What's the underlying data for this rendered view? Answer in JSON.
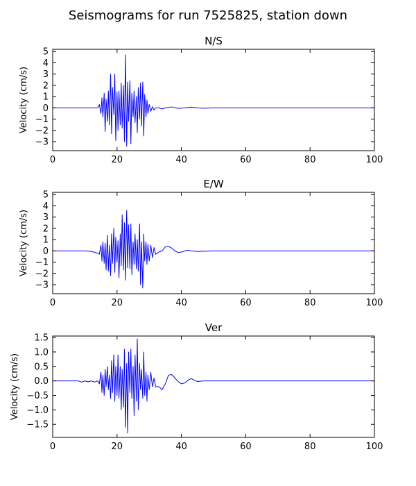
{
  "figure": {
    "title": "Seismograms for run 7525825, station down"
  },
  "chart_data": [
    {
      "type": "line",
      "title": "N/S",
      "xlabel": "",
      "ylabel": "Velocity (cm/s)",
      "xlim": [
        0,
        100
      ],
      "ylim": [
        -3.8,
        5.2
      ],
      "xticks": [
        0,
        20,
        40,
        60,
        80,
        100
      ],
      "yticks": [
        -3,
        -2,
        -1,
        0,
        1,
        2,
        3,
        4,
        5
      ],
      "grid": false,
      "series": [
        {
          "color": "#0000ff",
          "x": [
            0,
            10,
            14,
            14.5,
            15,
            15.3,
            15.6,
            16,
            16.3,
            16.6,
            17,
            17.3,
            17.6,
            18,
            18.3,
            18.6,
            19,
            19.3,
            19.6,
            20,
            20.3,
            20.6,
            21,
            21.3,
            21.6,
            22,
            22.3,
            22.6,
            23,
            23.3,
            23.6,
            24,
            24.3,
            24.6,
            25,
            25.3,
            25.6,
            26,
            26.3,
            26.6,
            27,
            27.3,
            27.6,
            28,
            28.3,
            28.6,
            29,
            29.3,
            29.6,
            30,
            30.5,
            31,
            31.5,
            32,
            33,
            34,
            35,
            37,
            39,
            41,
            43,
            45,
            47,
            50,
            60,
            100
          ],
          "y": [
            0,
            0,
            0,
            0.3,
            -0.5,
            0.9,
            -0.8,
            1.3,
            -2.1,
            0.8,
            -1.2,
            1.5,
            -1.5,
            3.0,
            -2.3,
            1.8,
            -0.6,
            3.0,
            -2.9,
            1.4,
            -2.0,
            1.5,
            -1.5,
            2.2,
            -1.8,
            2.0,
            -3.0,
            4.7,
            -3.4,
            2.3,
            -1.2,
            2.4,
            -3.2,
            1.3,
            -0.8,
            1.5,
            -1.3,
            1.0,
            -2.2,
            1.8,
            -1.0,
            2.2,
            -1.6,
            2.3,
            -2.5,
            1.2,
            -0.8,
            0.7,
            -0.5,
            0.3,
            -0.3,
            0.1,
            -0.2,
            0,
            0,
            -0.1,
            0,
            0.08,
            -0.05,
            0,
            0.07,
            0,
            -0.03,
            0,
            0,
            0
          ]
        }
      ]
    },
    {
      "type": "line",
      "title": "E/W",
      "xlabel": "",
      "ylabel": "Velocity (cm/s)",
      "xlim": [
        0,
        100
      ],
      "ylim": [
        -3.8,
        5.2
      ],
      "xticks": [
        0,
        20,
        40,
        60,
        80,
        100
      ],
      "yticks": [
        -3,
        -2,
        -1,
        0,
        1,
        2,
        3,
        4,
        5
      ],
      "grid": false,
      "series": [
        {
          "color": "#0000ff",
          "x": [
            0,
            8,
            10,
            12,
            14,
            14.5,
            15,
            15.3,
            15.6,
            16,
            16.3,
            16.6,
            17,
            17.3,
            17.6,
            18,
            18.3,
            18.6,
            19,
            19.3,
            19.6,
            20,
            20.3,
            20.6,
            21,
            21.3,
            21.6,
            22,
            22.3,
            22.6,
            23,
            23.3,
            23.6,
            24,
            24.3,
            24.6,
            25,
            25.3,
            25.6,
            26,
            26.3,
            26.6,
            27,
            27.3,
            27.6,
            28,
            28.3,
            28.6,
            29,
            29.3,
            29.6,
            30,
            30.5,
            31,
            31.5,
            32,
            33,
            34,
            35,
            36,
            37,
            38,
            39,
            40,
            41,
            42,
            43,
            45,
            50,
            60,
            100
          ],
          "y": [
            0,
            0,
            0,
            -0.05,
            -0.2,
            -0.3,
            0.5,
            -0.9,
            0.8,
            -1.1,
            0.7,
            -1.7,
            1.4,
            -1.8,
            0.5,
            -2.2,
            1.5,
            -1.1,
            2.0,
            -1.9,
            1.2,
            -1.0,
            0.9,
            -2.4,
            1.5,
            -1.3,
            3.2,
            -1.7,
            2.5,
            -2.6,
            3.6,
            -1.5,
            2.3,
            -1.6,
            2.4,
            -2.1,
            0.8,
            -1.2,
            1.5,
            -1.6,
            1.0,
            -1.8,
            2.4,
            -3.0,
            0.8,
            -3.3,
            1.5,
            -0.9,
            0.8,
            -1.2,
            0.6,
            -0.9,
            0.5,
            -0.6,
            0.3,
            -0.3,
            -0.1,
            0,
            0.35,
            0.4,
            0.25,
            0,
            -0.15,
            -0.1,
            0,
            0.05,
            0,
            -0.05,
            0,
            0,
            0
          ]
        }
      ]
    },
    {
      "type": "line",
      "title": "Ver",
      "xlabel": "",
      "ylabel": "Velocity (cm/s)",
      "xlim": [
        0,
        100
      ],
      "ylim": [
        -1.95,
        1.55
      ],
      "xticks": [
        0,
        20,
        40,
        60,
        80,
        100
      ],
      "yticks": [
        -1.5,
        -1.0,
        -0.5,
        0.0,
        0.5,
        1.0,
        1.5
      ],
      "yticklabels": [
        "−1.5",
        "−1.0",
        "−0.5",
        "0.0",
        "0.5",
        "1.0",
        "1.5"
      ],
      "grid": false,
      "series": [
        {
          "color": "#0000ff",
          "x": [
            0,
            8,
            9,
            10,
            11,
            12,
            13,
            14,
            14.5,
            15,
            15.3,
            15.6,
            16,
            16.3,
            16.6,
            17,
            17.3,
            17.6,
            18,
            18.3,
            18.6,
            19,
            19.3,
            19.6,
            20,
            20.3,
            20.6,
            21,
            21.3,
            21.6,
            22,
            22.3,
            22.6,
            23,
            23.3,
            23.6,
            24,
            24.3,
            24.6,
            25,
            25.3,
            25.6,
            26,
            26.3,
            26.6,
            27,
            27.3,
            27.6,
            28,
            28.3,
            28.6,
            29,
            29.3,
            29.6,
            30,
            30.5,
            31,
            31.5,
            32,
            33,
            34,
            35,
            36,
            37,
            38,
            39,
            40,
            41,
            42,
            43,
            44,
            45,
            47,
            50,
            60,
            100
          ],
          "y": [
            0,
            0,
            -0.04,
            0,
            -0.03,
            0,
            -0.04,
            0,
            -0.1,
            0.3,
            -0.4,
            0.2,
            -0.5,
            0.4,
            -0.2,
            0.5,
            -0.3,
            0.2,
            -0.6,
            0.7,
            -0.4,
            0.9,
            -0.7,
            0.5,
            -0.5,
            0.9,
            -0.6,
            0.5,
            -1.0,
            0.4,
            -0.9,
            1.1,
            -1.6,
            0.6,
            -1.8,
            1.0,
            -0.4,
            1.1,
            -0.6,
            0.5,
            -1.2,
            0.9,
            -0.7,
            1.45,
            -1.0,
            0.6,
            -0.3,
            0.4,
            -0.6,
            1.0,
            -0.5,
            0.3,
            -0.7,
            0.2,
            -0.3,
            0.3,
            -0.2,
            0.1,
            -0.2,
            -0.2,
            -0.3,
            -0.1,
            0.2,
            0.22,
            0.1,
            -0.02,
            -0.1,
            -0.07,
            0.02,
            0.08,
            0.03,
            -0.02,
            0,
            0,
            0,
            0
          ]
        }
      ]
    }
  ]
}
